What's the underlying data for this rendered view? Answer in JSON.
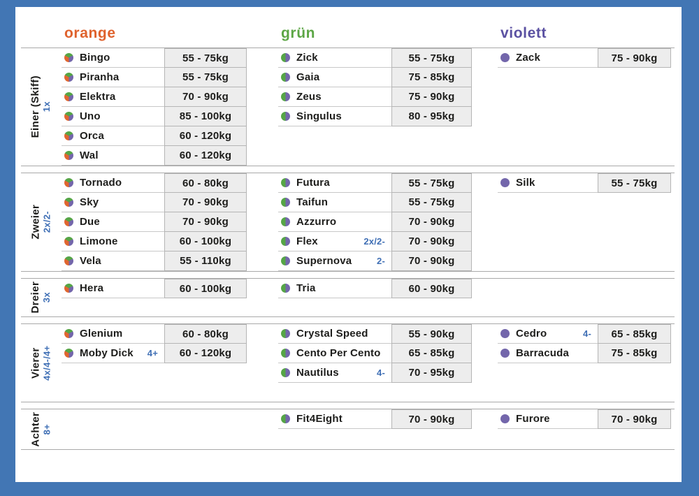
{
  "frame_color": "#4276b4",
  "palette": {
    "orange": "#e0662f",
    "green": "#55a546",
    "violet": "#7366ab"
  },
  "headers": [
    {
      "key": "orange",
      "label": "orange",
      "color": "#df622d"
    },
    {
      "key": "gruen",
      "label": "grün",
      "color": "#5ca645"
    },
    {
      "key": "violett",
      "label": "violett",
      "color": "#5b51a2"
    }
  ],
  "sections": [
    {
      "id": "einer",
      "label": "Einer (Skiff)",
      "sub": "1x",
      "columns": [
        {
          "icon": "tri-color-pie",
          "rows": [
            {
              "name": "Bingo",
              "note": "",
              "weight": "55 - 75kg"
            },
            {
              "name": "Piranha",
              "note": "",
              "weight": "55 - 75kg"
            },
            {
              "name": "Elektra",
              "note": "",
              "weight": "70 - 90kg"
            },
            {
              "name": "Uno",
              "note": "",
              "weight": "85 - 100kg"
            },
            {
              "name": "Orca",
              "note": "",
              "weight": "60 - 120kg"
            },
            {
              "name": "Wal",
              "note": "",
              "weight": "60 - 120kg"
            }
          ]
        },
        {
          "icon": "green-violet-split",
          "rows": [
            {
              "name": "Zick",
              "note": "",
              "weight": "55 - 75kg"
            },
            {
              "name": "Gaia",
              "note": "",
              "weight": "75 - 85kg"
            },
            {
              "name": "Zeus",
              "note": "",
              "weight": "75 - 90kg"
            },
            {
              "name": "Singulus",
              "note": "",
              "weight": "80 - 95kg"
            }
          ]
        },
        {
          "icon": "violet-dot",
          "rows": [
            {
              "name": "Zack",
              "note": "",
              "weight": "75 - 90kg"
            }
          ]
        }
      ]
    },
    {
      "id": "zweier",
      "label": "Zweier",
      "sub": "2x/2-",
      "columns": [
        {
          "icon": "tri-color-pie",
          "rows": [
            {
              "name": "Tornado",
              "note": "",
              "weight": "60 - 80kg"
            },
            {
              "name": "Sky",
              "note": "",
              "weight": "70 - 90kg"
            },
            {
              "name": "Due",
              "note": "",
              "weight": "70 - 90kg"
            },
            {
              "name": "Limone",
              "note": "",
              "weight": "60 - 100kg"
            },
            {
              "name": "Vela",
              "note": "",
              "weight": "55 - 110kg"
            }
          ]
        },
        {
          "icon": "green-violet-split",
          "rows": [
            {
              "name": "Futura",
              "note": "",
              "weight": "55 - 75kg"
            },
            {
              "name": "Taifun",
              "note": "",
              "weight": "55 - 75kg"
            },
            {
              "name": "Azzurro",
              "note": "",
              "weight": "70 - 90kg"
            },
            {
              "name": "Flex",
              "note": "2x/2-",
              "weight": "70 - 90kg"
            },
            {
              "name": "Supernova",
              "note": "2-",
              "weight": "70 - 90kg"
            }
          ]
        },
        {
          "icon": "violet-dot",
          "rows": [
            {
              "name": "Silk",
              "note": "",
              "weight": "55 - 75kg"
            }
          ]
        }
      ]
    },
    {
      "id": "dreier",
      "label": "Dreier",
      "sub": "3x",
      "columns": [
        {
          "icon": "tri-color-pie",
          "rows": [
            {
              "name": "Hera",
              "note": "",
              "weight": "60 - 100kg"
            }
          ]
        },
        {
          "icon": "green-violet-split",
          "rows": [
            {
              "name": "Tria",
              "note": "",
              "weight": "60 - 90kg"
            }
          ]
        },
        {
          "icon": "violet-dot",
          "rows": []
        }
      ]
    },
    {
      "id": "vierer",
      "label": "Vierer",
      "sub": "4x/4-/4+",
      "columns": [
        {
          "icon": "tri-color-pie",
          "rows": [
            {
              "name": "Glenium",
              "note": "",
              "weight": "60 - 80kg"
            },
            {
              "name": "Moby Dick",
              "note": "4+",
              "weight": "60 - 120kg"
            }
          ]
        },
        {
          "icon": "green-violet-split",
          "rows": [
            {
              "name": "Crystal Speed",
              "note": "",
              "weight": "55 - 90kg"
            },
            {
              "name": "Cento Per Cento",
              "note": "",
              "weight": "65 - 85kg"
            },
            {
              "name": "Nautilus",
              "note": "4-",
              "weight": "70 - 95kg"
            }
          ]
        },
        {
          "icon": "violet-dot",
          "rows": [
            {
              "name": "Cedro",
              "note": "4-",
              "weight": "65 - 85kg"
            },
            {
              "name": "Barracuda",
              "note": "",
              "weight": "75 - 85kg"
            }
          ]
        }
      ]
    },
    {
      "id": "achter",
      "label": "Achter",
      "sub": "8+",
      "columns": [
        {
          "icon": "tri-color-pie",
          "rows": []
        },
        {
          "icon": "green-violet-split",
          "rows": [
            {
              "name": "Fit4Eight",
              "note": "",
              "weight": "70 - 90kg"
            }
          ]
        },
        {
          "icon": "violet-dot",
          "rows": [
            {
              "name": "Furore",
              "note": "",
              "weight": "70 - 90kg"
            }
          ]
        }
      ]
    }
  ]
}
